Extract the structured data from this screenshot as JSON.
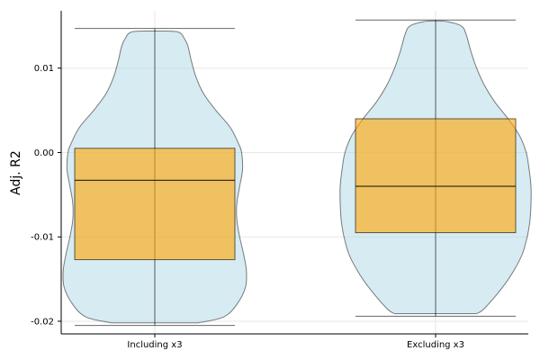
{
  "chart_data": {
    "type": "violin",
    "ylabel": "Adj. R2",
    "xlabel": "",
    "categories": [
      "Including x3",
      "Excluding x3"
    ],
    "ylim": [
      -0.0215,
      0.0168
    ],
    "yticks": [
      0.01,
      0.0,
      -0.01,
      -0.02
    ],
    "ytick_labels": [
      "0.01",
      "0.00",
      "-0.01",
      "-0.02"
    ],
    "grid": true,
    "colors": {
      "violin": "#add8e6",
      "box": "#ffa500"
    },
    "groups": [
      {
        "name": "Including x3",
        "min": -0.0205,
        "q1": -0.0127,
        "median": -0.0033,
        "q3": 0.0005,
        "max": 0.0147,
        "density": [
          [
            -0.0202,
            0.45
          ],
          [
            -0.0195,
            0.72
          ],
          [
            -0.018,
            0.86
          ],
          [
            -0.016,
            0.95
          ],
          [
            -0.014,
            0.96
          ],
          [
            -0.012,
            0.93
          ],
          [
            -0.01,
            0.89
          ],
          [
            -0.008,
            0.86
          ],
          [
            -0.006,
            0.86
          ],
          [
            -0.004,
            0.89
          ],
          [
            -0.002,
            0.92
          ],
          [
            0.0,
            0.91
          ],
          [
            0.001,
            0.88
          ],
          [
            0.003,
            0.79
          ],
          [
            0.005,
            0.64
          ],
          [
            0.007,
            0.51
          ],
          [
            0.009,
            0.43
          ],
          [
            0.011,
            0.38
          ],
          [
            0.0125,
            0.35
          ],
          [
            0.0135,
            0.31
          ],
          [
            0.0143,
            0.24
          ],
          [
            0.0144,
            0.0
          ]
        ]
      },
      {
        "name": "Excluding x3",
        "min": -0.0194,
        "q1": -0.0095,
        "median": -0.004,
        "q3": 0.004,
        "max": 0.0157,
        "density": [
          [
            -0.0191,
            0.43
          ],
          [
            -0.0185,
            0.51
          ],
          [
            -0.016,
            0.7
          ],
          [
            -0.014,
            0.82
          ],
          [
            -0.012,
            0.91
          ],
          [
            -0.01,
            0.96
          ],
          [
            -0.008,
            0.99
          ],
          [
            -0.006,
            1.0
          ],
          [
            -0.004,
            1.0
          ],
          [
            -0.002,
            0.98
          ],
          [
            0.0,
            0.95
          ],
          [
            0.002,
            0.88
          ],
          [
            0.004,
            0.76
          ],
          [
            0.006,
            0.62
          ],
          [
            0.008,
            0.51
          ],
          [
            0.01,
            0.43
          ],
          [
            0.012,
            0.37
          ],
          [
            0.014,
            0.32
          ],
          [
            0.015,
            0.27
          ],
          [
            0.0155,
            0.13
          ],
          [
            0.0156,
            0.0
          ]
        ]
      }
    ]
  }
}
